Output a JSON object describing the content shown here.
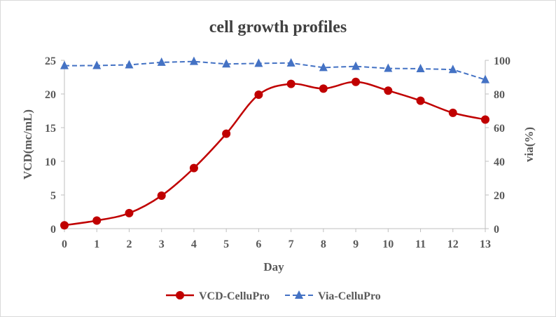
{
  "chart_data": {
    "type": "line",
    "title": "cell growth profiles",
    "xlabel": "Day",
    "ylabel": "VCD(mc/mL)",
    "y2label": "via(%)",
    "x": [
      0,
      1,
      2,
      3,
      4,
      5,
      6,
      7,
      8,
      9,
      10,
      11,
      12,
      13
    ],
    "xlim": [
      0,
      13
    ],
    "ylim": [
      0,
      25
    ],
    "y2lim": [
      0,
      100
    ],
    "yticks": [
      0,
      5,
      10,
      15,
      20,
      25
    ],
    "y2ticks": [
      0,
      20,
      40,
      60,
      80,
      100
    ],
    "grid": false,
    "legend_position": "bottom",
    "series": [
      {
        "name": "VCD-CelluPro",
        "axis": "left",
        "color": "#c00000",
        "marker": "circle",
        "line_style": "solid-smooth",
        "values": [
          0.5,
          1.2,
          2.3,
          4.9,
          9.0,
          14.1,
          19.9,
          21.5,
          20.8,
          21.8,
          20.5,
          19.0,
          17.2,
          16.2
        ]
      },
      {
        "name": "Via-CelluPro",
        "axis": "right",
        "color": "#4472c4",
        "marker": "triangle",
        "line_style": "dashed",
        "values": [
          96.8,
          96.9,
          97.3,
          98.8,
          99.3,
          97.8,
          98.2,
          98.4,
          95.7,
          96.4,
          95.2,
          95.0,
          94.5,
          88.5
        ]
      }
    ]
  }
}
